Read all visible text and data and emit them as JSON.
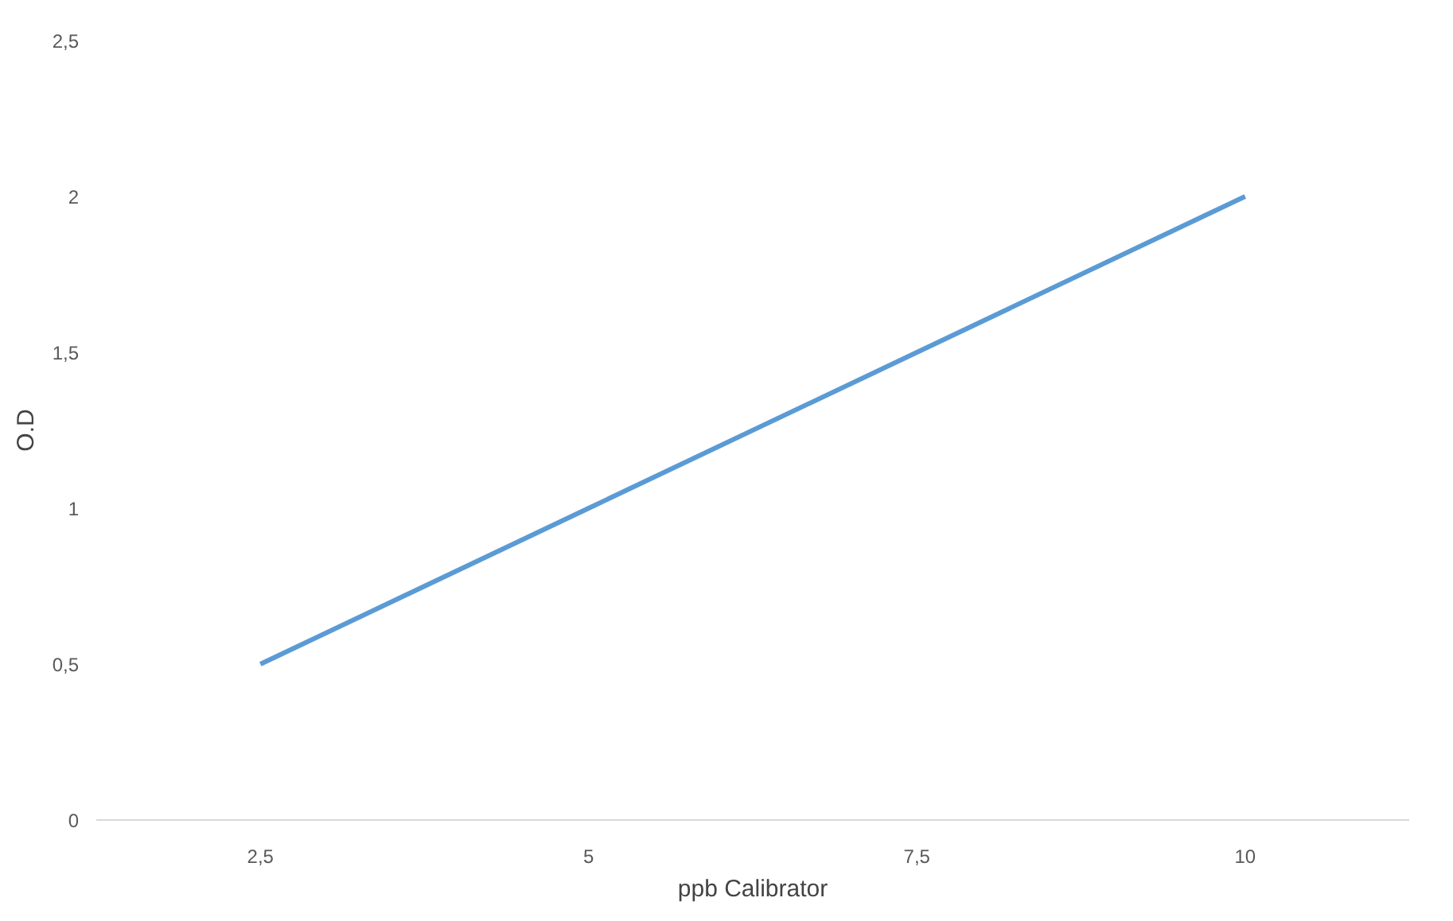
{
  "chart_data": {
    "type": "line",
    "xlabel": "ppb Calibrator",
    "ylabel": "O.D",
    "categories": [
      "2,5",
      "5",
      "7,5",
      "10"
    ],
    "series": [
      {
        "color": "#5b9bd5",
        "values": [
          0.5,
          1,
          1.5,
          2
        ]
      }
    ],
    "ylim": [
      0,
      2.5
    ],
    "yticks": [
      0,
      {
        "value": 0.5,
        "label": "0,5"
      },
      1,
      {
        "value": 1.5,
        "label": "1,5"
      },
      2,
      {
        "value": 2.5,
        "label": "2,5"
      }
    ],
    "grid": false,
    "marker": "none",
    "line_style": "solid"
  }
}
